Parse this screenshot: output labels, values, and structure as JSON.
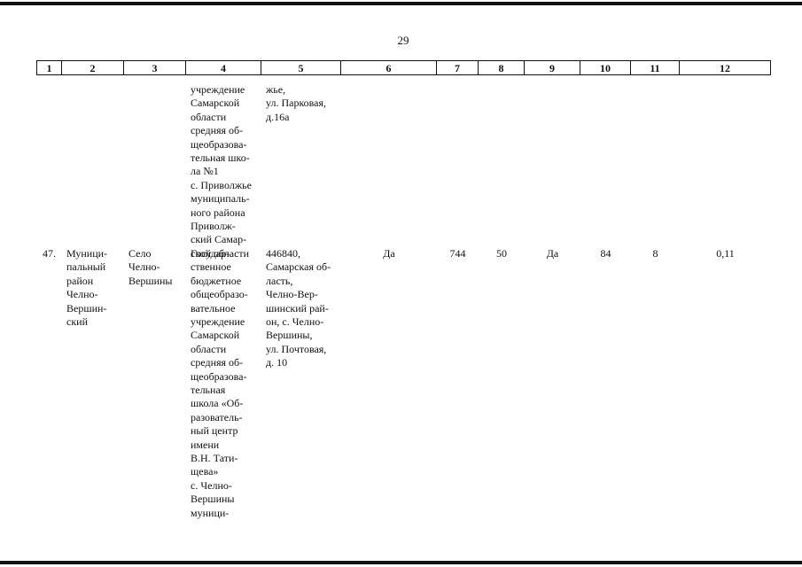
{
  "page_number": "29",
  "table": {
    "header": [
      "1",
      "2",
      "3",
      "4",
      "5",
      "6",
      "7",
      "8",
      "9",
      "10",
      "11",
      "12"
    ],
    "rows": [
      {
        "4": [
          "учреждение",
          "Самарской",
          "области",
          "средняя об-",
          "щеобразова-",
          "тельная шко-",
          "ла №1",
          "с. Приволжье",
          "муниципаль-",
          "ного района",
          "Приволж-",
          "ский Самар-",
          "ской области"
        ],
        "5": [
          "жье,",
          "ул. Парковая,",
          "д.16а"
        ]
      },
      {
        "1": [
          "47."
        ],
        "2": [
          "Муници-",
          "пальный",
          "район",
          "Челно-",
          "Вершин-",
          "ский"
        ],
        "3": [
          "Село",
          "Челно-",
          "Вершины"
        ],
        "4": [
          "Государ-",
          "ственное",
          "бюджетное",
          "общеобразо-",
          "вательное",
          "учреждение",
          "Самарской",
          "области",
          "средняя об-",
          "щеобразова-",
          "тельная",
          "школа «Об-",
          "разователь-",
          "ный центр",
          "имени",
          "В.Н. Тати-",
          "щева»",
          "с. Челно-",
          "Вершины",
          "муници-"
        ],
        "5": [
          "446840,",
          "Самарская об-",
          "ласть,",
          "Челно-Вер-",
          "шинский рай-",
          "он, с. Челно-",
          "Вершины,",
          "ул. Почтовая,",
          "д. 10"
        ],
        "6": [
          "Да"
        ],
        "7": [
          "744"
        ],
        "8": [
          "50"
        ],
        "9": [
          "Да"
        ],
        "10": [
          "84"
        ],
        "11": [
          "8"
        ],
        "12": [
          "0,11"
        ]
      }
    ]
  }
}
